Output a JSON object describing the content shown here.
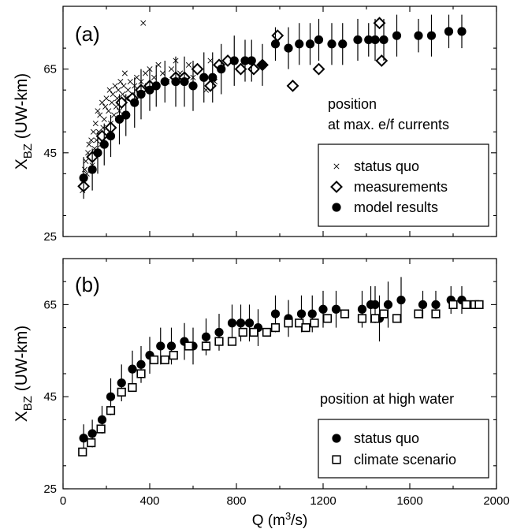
{
  "chart_data": [
    {
      "type": "scatter",
      "panel_label": "(a)",
      "annotation_line1": "position",
      "annotation_line2": "at max. e/f currents",
      "ylabel_main": "X",
      "ylabel_sub": "BZ",
      "ylabel_unit": " (UW-km)",
      "xlabel": "",
      "xlim": [
        0,
        2000
      ],
      "ylim": [
        25,
        80
      ],
      "yticks": [
        "25",
        "45",
        "65"
      ],
      "ytick_values": [
        25,
        45,
        65
      ],
      "xticks": [
        "0",
        "400",
        "800",
        "1200",
        "1600",
        "2000"
      ],
      "xtick_values": [
        0,
        400,
        800,
        1200,
        1600,
        2000
      ],
      "grid": false,
      "legend_position": "lower-right",
      "series": [
        {
          "name": "status quo",
          "marker": "cross",
          "points": [
            [
              90,
              36
            ],
            [
              95,
              38
            ],
            [
              100,
              41
            ],
            [
              105,
              43
            ],
            [
              110,
              40
            ],
            [
              115,
              45
            ],
            [
              120,
              47
            ],
            [
              125,
              44
            ],
            [
              130,
              48
            ],
            [
              135,
              42
            ],
            [
              140,
              50
            ],
            [
              145,
              46
            ],
            [
              150,
              52
            ],
            [
              155,
              48
            ],
            [
              160,
              55
            ],
            [
              165,
              50
            ],
            [
              170,
              54
            ],
            [
              175,
              47
            ],
            [
              180,
              57
            ],
            [
              185,
              51
            ],
            [
              190,
              53
            ],
            [
              195,
              56
            ],
            [
              200,
              58
            ],
            [
              205,
              49
            ],
            [
              210,
              55
            ],
            [
              215,
              60
            ],
            [
              220,
              52
            ],
            [
              225,
              57
            ],
            [
              230,
              59
            ],
            [
              235,
              54
            ],
            [
              240,
              61
            ],
            [
              245,
              56
            ],
            [
              250,
              58
            ],
            [
              255,
              60
            ],
            [
              260,
              55
            ],
            [
              265,
              62
            ],
            [
              270,
              57
            ],
            [
              275,
              59
            ],
            [
              280,
              61
            ],
            [
              285,
              64
            ],
            [
              290,
              58
            ],
            [
              300,
              60
            ],
            [
              310,
              62
            ],
            [
              320,
              59
            ],
            [
              330,
              61
            ],
            [
              340,
              63
            ],
            [
              350,
              60
            ],
            [
              360,
              62
            ],
            [
              370,
              76
            ],
            [
              380,
              64
            ],
            [
              390,
              61
            ],
            [
              400,
              65
            ],
            [
              420,
              63
            ],
            [
              440,
              66
            ],
            [
              460,
              64
            ],
            [
              480,
              62
            ],
            [
              500,
              65
            ],
            [
              520,
              67
            ],
            [
              540,
              64
            ],
            [
              560,
              62
            ],
            [
              580,
              66
            ],
            [
              600,
              63
            ],
            [
              620,
              65
            ],
            [
              660,
              60
            ],
            [
              680,
              67
            ],
            [
              700,
              62
            ],
            [
              720,
              66
            ]
          ]
        },
        {
          "name": "measurements",
          "marker": "diamond",
          "points": [
            [
              95,
              37
            ],
            [
              135,
              44
            ],
            [
              180,
              49
            ],
            [
              220,
              51
            ],
            [
              270,
              57
            ],
            [
              320,
              58
            ],
            [
              360,
              60
            ],
            [
              400,
              61
            ],
            [
              520,
              63
            ],
            [
              560,
              63
            ],
            [
              620,
              65
            ],
            [
              680,
              61
            ],
            [
              720,
              66
            ],
            [
              760,
              67
            ],
            [
              820,
              65
            ],
            [
              880,
              65
            ],
            [
              920,
              66
            ],
            [
              990,
              73
            ],
            [
              1060,
              61
            ],
            [
              1180,
              65
            ],
            [
              1460,
              76
            ],
            [
              1470,
              67
            ]
          ]
        },
        {
          "name": "model results",
          "marker": "circle",
          "points": [
            [
              95,
              39
            ],
            [
              135,
              41
            ],
            [
              160,
              45
            ],
            [
              190,
              47
            ],
            [
              220,
              49
            ],
            [
              260,
              53
            ],
            [
              290,
              54
            ],
            [
              330,
              57
            ],
            [
              360,
              59
            ],
            [
              400,
              60
            ],
            [
              430,
              61
            ],
            [
              470,
              62
            ],
            [
              520,
              62
            ],
            [
              560,
              62
            ],
            [
              600,
              61
            ],
            [
              650,
              63
            ],
            [
              690,
              63
            ],
            [
              730,
              65
            ],
            [
              790,
              67
            ],
            [
              840,
              67
            ],
            [
              870,
              67
            ],
            [
              920,
              66
            ],
            [
              980,
              71
            ],
            [
              1040,
              70
            ],
            [
              1090,
              71
            ],
            [
              1140,
              71
            ],
            [
              1180,
              72
            ],
            [
              1240,
              71
            ],
            [
              1290,
              71
            ],
            [
              1360,
              72
            ],
            [
              1410,
              72
            ],
            [
              1440,
              72
            ],
            [
              1480,
              72
            ],
            [
              1540,
              73
            ],
            [
              1640,
              73
            ],
            [
              1700,
              73
            ],
            [
              1780,
              74
            ],
            [
              1840,
              74
            ]
          ],
          "errors": [
            5,
            5,
            5,
            5,
            5,
            6,
            5,
            6,
            6,
            5,
            5,
            5,
            6,
            6,
            6,
            6,
            6,
            6,
            6,
            5,
            5,
            5,
            4,
            5,
            5,
            5,
            5,
            5,
            5,
            5,
            4,
            5,
            5,
            5,
            4,
            5,
            4,
            4
          ]
        }
      ]
    },
    {
      "type": "scatter",
      "panel_label": "(b)",
      "annotation_line1": "position at high water",
      "ylabel_main": "X",
      "ylabel_sub": "BZ",
      "ylabel_unit": " (UW-km)",
      "xlabel_main": "Q (m",
      "xlabel_sup": "3",
      "xlabel_tail": "/s)",
      "xlim": [
        0,
        2000
      ],
      "ylim": [
        25,
        75
      ],
      "yticks": [
        "25",
        "45",
        "65"
      ],
      "ytick_values": [
        25,
        45,
        65
      ],
      "xticks": [
        "0",
        "400",
        "800",
        "1200",
        "1600",
        "2000"
      ],
      "xtick_values": [
        0,
        400,
        800,
        1200,
        1600,
        2000
      ],
      "grid": false,
      "legend_position": "lower-right",
      "series": [
        {
          "name": "status quo",
          "marker": "circle",
          "points": [
            [
              95,
              36
            ],
            [
              135,
              37
            ],
            [
              180,
              40
            ],
            [
              220,
              45
            ],
            [
              270,
              48
            ],
            [
              320,
              51
            ],
            [
              360,
              52
            ],
            [
              400,
              54
            ],
            [
              450,
              56
            ],
            [
              500,
              56
            ],
            [
              560,
              57
            ],
            [
              600,
              56
            ],
            [
              660,
              58
            ],
            [
              720,
              59
            ],
            [
              780,
              61
            ],
            [
              820,
              61
            ],
            [
              860,
              61
            ],
            [
              900,
              60
            ],
            [
              980,
              63
            ],
            [
              1040,
              62
            ],
            [
              1100,
              63
            ],
            [
              1150,
              63
            ],
            [
              1200,
              64
            ],
            [
              1260,
              64
            ],
            [
              1380,
              64
            ],
            [
              1420,
              65
            ],
            [
              1440,
              65
            ],
            [
              1460,
              62
            ],
            [
              1500,
              65
            ],
            [
              1560,
              66
            ],
            [
              1660,
              65
            ],
            [
              1720,
              65
            ],
            [
              1790,
              66
            ],
            [
              1840,
              66
            ]
          ],
          "errors": [
            3,
            3,
            3,
            4,
            4,
            4,
            4,
            4,
            4,
            4,
            4,
            4,
            4,
            4,
            4,
            4,
            4,
            4,
            4,
            4,
            4,
            4,
            4,
            4,
            4,
            4,
            4,
            5,
            5,
            5,
            3,
            3,
            3,
            3
          ]
        },
        {
          "name": "climate scenario",
          "marker": "square",
          "points": [
            [
              90,
              33
            ],
            [
              130,
              35
            ],
            [
              175,
              38
            ],
            [
              220,
              42
            ],
            [
              270,
              46
            ],
            [
              320,
              47
            ],
            [
              360,
              50
            ],
            [
              420,
              53
            ],
            [
              470,
              53
            ],
            [
              510,
              54
            ],
            [
              580,
              56
            ],
            [
              660,
              56
            ],
            [
              720,
              57
            ],
            [
              780,
              57
            ],
            [
              830,
              59
            ],
            [
              880,
              59
            ],
            [
              940,
              59
            ],
            [
              980,
              60
            ],
            [
              1040,
              61
            ],
            [
              1090,
              61
            ],
            [
              1120,
              60
            ],
            [
              1160,
              61
            ],
            [
              1220,
              62
            ],
            [
              1300,
              63
            ],
            [
              1380,
              62
            ],
            [
              1440,
              62
            ],
            [
              1480,
              63
            ],
            [
              1540,
              62
            ],
            [
              1640,
              63
            ],
            [
              1720,
              63
            ],
            [
              1800,
              65
            ],
            [
              1860,
              65
            ],
            [
              1900,
              65
            ],
            [
              1920,
              65
            ]
          ]
        }
      ]
    }
  ]
}
